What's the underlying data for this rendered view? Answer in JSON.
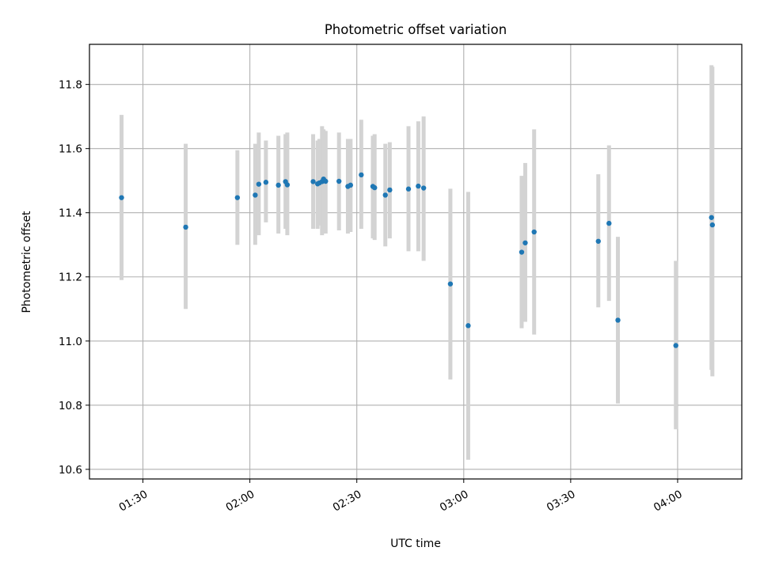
{
  "colors": {
    "point": "#1f77b4",
    "errorbar": "#d3d3d3",
    "grid": "#b0b0b0",
    "axes": "#000000",
    "background": "#ffffff"
  },
  "chart_data": {
    "type": "scatter",
    "title": "Photometric offset variation",
    "xlabel": "UTC time",
    "ylabel": "Photometric offset",
    "x_kind": "time",
    "xlim": [
      "01:15",
      "04:18"
    ],
    "ylim": [
      10.57,
      11.925
    ],
    "x_ticks": [
      "01:30",
      "02:00",
      "02:30",
      "03:00",
      "03:30",
      "04:00"
    ],
    "y_ticks": [
      "10.6",
      "10.8",
      "11.0",
      "11.2",
      "11.4",
      "11.6",
      "11.8"
    ],
    "grid": true,
    "legend": "none",
    "series": [
      {
        "marker": "point",
        "errorbar": true,
        "points": [
          {
            "x": "01:24:00",
            "y": 11.447,
            "lo": 11.19,
            "hi": 11.705
          },
          {
            "x": "01:42:00",
            "y": 11.355,
            "lo": 11.1,
            "hi": 11.615
          },
          {
            "x": "01:56:30",
            "y": 11.447,
            "lo": 11.3,
            "hi": 11.595
          },
          {
            "x": "02:01:30",
            "y": 11.455,
            "lo": 11.3,
            "hi": 11.615
          },
          {
            "x": "02:02:30",
            "y": 11.489,
            "lo": 11.33,
            "hi": 11.65
          },
          {
            "x": "02:04:30",
            "y": 11.495,
            "lo": 11.37,
            "hi": 11.625
          },
          {
            "x": "02:08:00",
            "y": 11.486,
            "lo": 11.335,
            "hi": 11.64
          },
          {
            "x": "02:10:00",
            "y": 11.497,
            "lo": 11.35,
            "hi": 11.645
          },
          {
            "x": "02:10:30",
            "y": 11.487,
            "lo": 11.33,
            "hi": 11.65
          },
          {
            "x": "02:17:45",
            "y": 11.497,
            "lo": 11.35,
            "hi": 11.645
          },
          {
            "x": "02:19:00",
            "y": 11.49,
            "lo": 11.35,
            "hi": 11.625
          },
          {
            "x": "02:19:30",
            "y": 11.493,
            "lo": 11.36,
            "hi": 11.63
          },
          {
            "x": "02:20:15",
            "y": 11.497,
            "lo": 11.33,
            "hi": 11.67
          },
          {
            "x": "02:20:40",
            "y": 11.505,
            "lo": 11.34,
            "hi": 11.66
          },
          {
            "x": "02:21:15",
            "y": 11.498,
            "lo": 11.335,
            "hi": 11.655
          },
          {
            "x": "02:25:00",
            "y": 11.498,
            "lo": 11.345,
            "hi": 11.65
          },
          {
            "x": "02:27:30",
            "y": 11.482,
            "lo": 11.335,
            "hi": 11.63
          },
          {
            "x": "02:28:15",
            "y": 11.486,
            "lo": 11.34,
            "hi": 11.63
          },
          {
            "x": "02:31:15",
            "y": 11.518,
            "lo": 11.35,
            "hi": 11.69
          },
          {
            "x": "02:34:30",
            "y": 11.482,
            "lo": 11.32,
            "hi": 11.64
          },
          {
            "x": "02:35:00",
            "y": 11.478,
            "lo": 11.315,
            "hi": 11.645
          },
          {
            "x": "02:38:00",
            "y": 11.455,
            "lo": 11.295,
            "hi": 11.615
          },
          {
            "x": "02:39:15",
            "y": 11.471,
            "lo": 11.32,
            "hi": 11.62
          },
          {
            "x": "02:44:30",
            "y": 11.474,
            "lo": 11.28,
            "hi": 11.67
          },
          {
            "x": "02:47:15",
            "y": 11.483,
            "lo": 11.28,
            "hi": 11.685
          },
          {
            "x": "02:48:45",
            "y": 11.477,
            "lo": 11.25,
            "hi": 11.7
          },
          {
            "x": "02:56:15",
            "y": 11.178,
            "lo": 10.88,
            "hi": 11.475
          },
          {
            "x": "03:01:15",
            "y": 11.048,
            "lo": 10.63,
            "hi": 11.465
          },
          {
            "x": "03:16:15",
            "y": 11.277,
            "lo": 11.04,
            "hi": 11.515
          },
          {
            "x": "03:17:15",
            "y": 11.306,
            "lo": 11.06,
            "hi": 11.555
          },
          {
            "x": "03:19:45",
            "y": 11.34,
            "lo": 11.02,
            "hi": 11.66
          },
          {
            "x": "03:37:45",
            "y": 11.311,
            "lo": 11.105,
            "hi": 11.52
          },
          {
            "x": "03:40:45",
            "y": 11.367,
            "lo": 11.125,
            "hi": 11.61
          },
          {
            "x": "03:43:15",
            "y": 11.065,
            "lo": 10.805,
            "hi": 11.325
          },
          {
            "x": "03:59:30",
            "y": 10.986,
            "lo": 10.725,
            "hi": 11.25
          },
          {
            "x": "04:09:30",
            "y": 11.385,
            "lo": 10.91,
            "hi": 11.86
          },
          {
            "x": "04:09:45",
            "y": 11.362,
            "lo": 10.89,
            "hi": 11.855
          }
        ]
      }
    ]
  }
}
